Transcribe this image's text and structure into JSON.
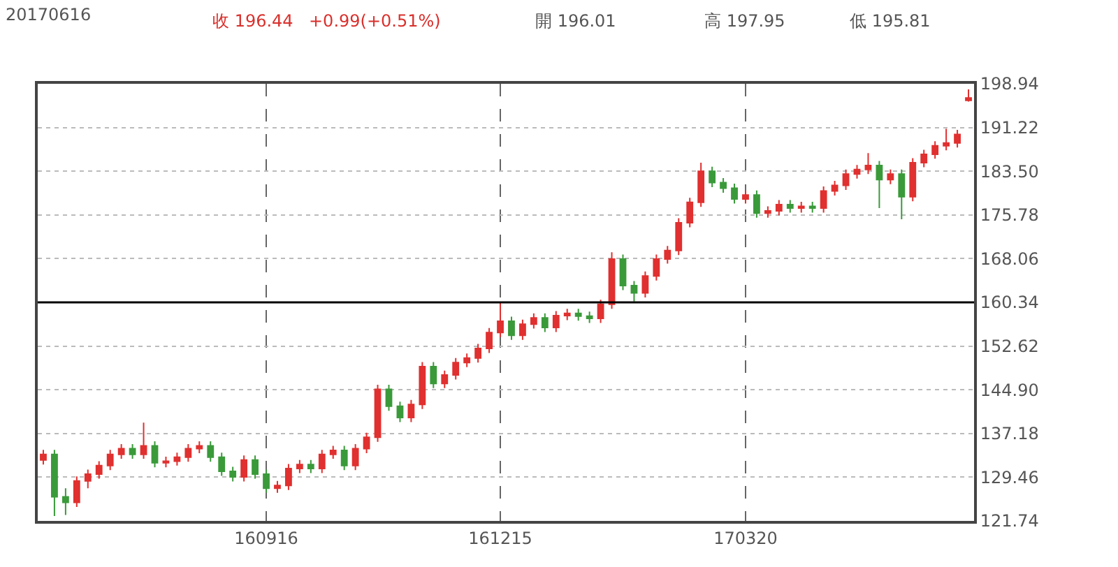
{
  "chart_data": {
    "type": "candlestick",
    "title": "20170616",
    "annotations": [
      "收 196.44",
      "+0.99(+0.51%)",
      "開 196.01",
      "高 197.95",
      "低 195.81"
    ],
    "categories": [
      null,
      null,
      null,
      null,
      null,
      null,
      null,
      null,
      null,
      null,
      null,
      null,
      null,
      null,
      null,
      null,
      null,
      null,
      null,
      null,
      "160916",
      null,
      null,
      null,
      null,
      null,
      null,
      null,
      null,
      null,
      null,
      null,
      null,
      null,
      null,
      null,
      null,
      null,
      null,
      null,
      null,
      "161215",
      null,
      null,
      null,
      null,
      null,
      null,
      null,
      null,
      null,
      null,
      null,
      null,
      null,
      null,
      null,
      null,
      null,
      null,
      null,
      null,
      null,
      "170320",
      null,
      null,
      null,
      null,
      null,
      null,
      null,
      null,
      null,
      null,
      null,
      null,
      null,
      null,
      null,
      null,
      null,
      null,
      null,
      null
    ],
    "ohlc": [
      [
        132.5,
        134.3,
        131.7,
        133.5
      ],
      [
        133.5,
        134.3,
        122.6,
        126
      ],
      [
        126,
        127.5,
        122.8,
        125
      ],
      [
        125,
        129.6,
        124.2,
        128.8
      ],
      [
        128.8,
        130.8,
        127.5,
        130
      ],
      [
        130,
        132.3,
        129.2,
        131.5
      ],
      [
        131.5,
        134.3,
        130.7,
        133.5
      ],
      [
        133.5,
        135.3,
        132.7,
        134.5
      ],
      [
        134.5,
        135.3,
        132.7,
        133.5
      ],
      [
        133.5,
        139.1,
        132.7,
        135
      ],
      [
        135,
        135.8,
        131.2,
        132
      ],
      [
        132,
        133.1,
        131.2,
        132.3
      ],
      [
        132.3,
        133.8,
        131.5,
        133
      ],
      [
        133,
        135.3,
        132.2,
        134.5
      ],
      [
        134.5,
        135.8,
        133.7,
        135
      ],
      [
        135,
        135.8,
        132.2,
        133
      ],
      [
        133,
        133.8,
        129.7,
        130.5
      ],
      [
        130.5,
        131.3,
        128.7,
        129.5
      ],
      [
        129.5,
        133.3,
        128.7,
        132.5
      ],
      [
        132.5,
        133.3,
        129.2,
        130
      ],
      [
        130,
        130.8,
        126.7,
        127.5
      ],
      [
        127.5,
        128.8,
        126.7,
        128
      ],
      [
        128,
        131.8,
        127.2,
        131
      ],
      [
        131,
        132.5,
        130.2,
        131.7
      ],
      [
        131.7,
        132.5,
        130.2,
        131
      ],
      [
        131,
        134.3,
        130.2,
        133.5
      ],
      [
        133.5,
        135,
        132.7,
        134.2
      ],
      [
        134.2,
        135,
        130.7,
        131.5
      ],
      [
        131.5,
        135.3,
        130.7,
        134.5
      ],
      [
        134.5,
        137.3,
        133.7,
        136.5
      ],
      [
        136.5,
        145.8,
        135.7,
        145
      ],
      [
        145,
        145.8,
        141.2,
        142
      ],
      [
        142,
        142.8,
        139.2,
        140
      ],
      [
        140,
        143.1,
        139.2,
        142.3
      ],
      [
        142.3,
        149.8,
        141.5,
        149
      ],
      [
        149,
        149.8,
        145.2,
        146
      ],
      [
        146,
        148.3,
        145.2,
        147.5
      ],
      [
        147.5,
        150.5,
        146.7,
        149.7
      ],
      [
        149.7,
        151.3,
        148.9,
        150.5
      ],
      [
        150.5,
        153,
        149.7,
        152.2
      ],
      [
        152.2,
        155.8,
        151.4,
        155
      ],
      [
        155,
        160.3,
        154.2,
        157
      ],
      [
        157,
        157.8,
        153.7,
        154.5
      ],
      [
        154.5,
        157.3,
        153.7,
        156.5
      ],
      [
        156.5,
        158.4,
        155.7,
        157.6
      ],
      [
        157.6,
        158.4,
        155.1,
        155.9
      ],
      [
        155.9,
        158.8,
        155.1,
        158
      ],
      [
        158,
        159.2,
        157.2,
        158.4
      ],
      [
        158.4,
        159.2,
        157.1,
        157.9
      ],
      [
        157.9,
        158.7,
        156.7,
        157.5
      ],
      [
        157.5,
        160.8,
        156.7,
        160
      ],
      [
        160,
        169.2,
        159.2,
        168
      ],
      [
        168,
        168.8,
        162.5,
        163.3
      ],
      [
        163.3,
        164.1,
        160.5,
        162
      ],
      [
        162,
        165.8,
        161.2,
        165
      ],
      [
        165,
        168.8,
        164.2,
        168
      ],
      [
        168,
        170.3,
        167.2,
        169.5
      ],
      [
        169.5,
        175.2,
        168.7,
        174.4
      ],
      [
        174.4,
        178.8,
        173.6,
        178
      ],
      [
        178,
        185,
        177.2,
        183.5
      ],
      [
        183.5,
        184.3,
        180.7,
        181.5
      ],
      [
        181.5,
        182.3,
        179.7,
        180.5
      ],
      [
        180.5,
        181.3,
        177.8,
        178.6
      ],
      [
        178.6,
        180.1,
        177.8,
        179.3
      ],
      [
        179.3,
        180.1,
        175.3,
        176.1
      ],
      [
        176.1,
        177.3,
        175.3,
        176.5
      ],
      [
        176.5,
        178.4,
        175.7,
        177.6
      ],
      [
        177.6,
        178.4,
        176.2,
        177
      ],
      [
        177,
        178.1,
        176.2,
        177.3
      ],
      [
        177.3,
        178.1,
        176.2,
        177
      ],
      [
        177,
        180.8,
        176.2,
        180
      ],
      [
        180,
        181.8,
        179.2,
        181
      ],
      [
        181,
        183.8,
        180.2,
        183
      ],
      [
        183,
        184.6,
        182.2,
        183.8
      ],
      [
        183.8,
        186.7,
        183,
        184.5
      ],
      [
        184.5,
        185.3,
        177,
        182
      ],
      [
        182,
        183.8,
        181.2,
        183
      ],
      [
        183,
        183.8,
        175,
        179
      ],
      [
        179,
        185.8,
        178.2,
        185
      ],
      [
        185,
        187.3,
        184.2,
        186.5
      ],
      [
        186.5,
        188.8,
        185.7,
        188
      ],
      [
        188,
        191,
        187.2,
        188.5
      ],
      [
        188.5,
        190.8,
        187.7,
        190
      ],
      [
        196.01,
        197.95,
        195.81,
        196.44
      ]
    ],
    "colors": [
      "#e0302f",
      "#3a9a3a",
      "#3a9a3a",
      "#e0302f",
      "#e0302f",
      "#e0302f",
      "#e0302f",
      "#e0302f",
      "#3a9a3a",
      "#e0302f",
      "#3a9a3a",
      "#e0302f",
      "#e0302f",
      "#e0302f",
      "#e0302f",
      "#3a9a3a",
      "#3a9a3a",
      "#3a9a3a",
      "#e0302f",
      "#3a9a3a",
      "#3a9a3a",
      "#e0302f",
      "#e0302f",
      "#e0302f",
      "#3a9a3a",
      "#e0302f",
      "#e0302f",
      "#3a9a3a",
      "#e0302f",
      "#e0302f",
      "#e0302f",
      "#3a9a3a",
      "#3a9a3a",
      "#e0302f",
      "#e0302f",
      "#3a9a3a",
      "#e0302f",
      "#e0302f",
      "#e0302f",
      "#e0302f",
      "#e0302f",
      "#e0302f",
      "#3a9a3a",
      "#e0302f",
      "#e0302f",
      "#3a9a3a",
      "#e0302f",
      "#e0302f",
      "#3a9a3a",
      "#3a9a3a",
      "#e0302f",
      "#e0302f",
      "#3a9a3a",
      "#3a9a3a",
      "#e0302f",
      "#e0302f",
      "#e0302f",
      "#e0302f",
      "#e0302f",
      "#e0302f",
      "#3a9a3a",
      "#3a9a3a",
      "#3a9a3a",
      "#e0302f",
      "#3a9a3a",
      "#e0302f",
      "#e0302f",
      "#3a9a3a",
      "#e0302f",
      "#3a9a3a",
      "#e0302f",
      "#e0302f",
      "#e0302f",
      "#e0302f",
      "#e0302f",
      "#3a9a3a",
      "#e0302f",
      "#3a9a3a",
      "#e0302f",
      "#e0302f",
      "#e0302f",
      "#e0302f",
      "#e0302f",
      "#e0302f"
    ],
    "ylim": [
      121.74,
      198.94
    ],
    "yticks": [
      121.74,
      129.46,
      137.18,
      {
        "value": 144.9,
        "label": "144.90"
      },
      {
        "value": 152.62,
        "label": "152.62"
      },
      160.34,
      168.06,
      175.78,
      {
        "value": 183.5,
        "label": "183.50"
      },
      {
        "value": 191.22,
        "label": "191.22"
      },
      198.94
    ],
    "ref_lines": [
      {
        "axis": "y",
        "value": 160.34,
        "color": "#000000"
      }
    ],
    "grid": true
  }
}
